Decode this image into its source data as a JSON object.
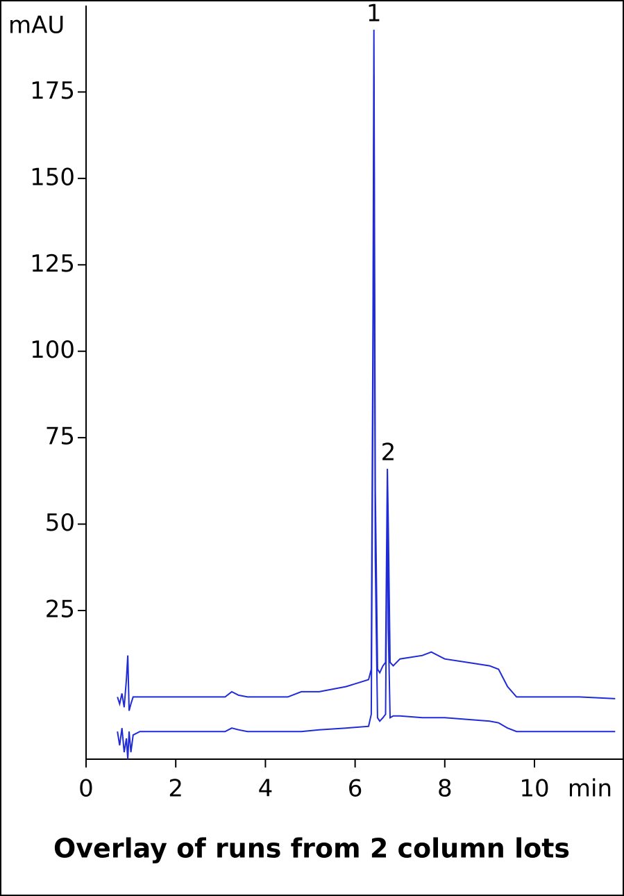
{
  "chart_data": {
    "type": "line",
    "title": "Overlay of runs from 2 column lots",
    "ylabel": "mAU",
    "xlabel": "min",
    "x": [
      0.7,
      0.75,
      0.8,
      0.85,
      0.9,
      0.93,
      0.96,
      1.0,
      1.05,
      1.2,
      2,
      3.1,
      3.25,
      3.4,
      3.6,
      4.5,
      4.8,
      5.2,
      5.8,
      6.3,
      6.36,
      6.4,
      6.42,
      6.45,
      6.5,
      6.55,
      6.62,
      6.68,
      6.72,
      6.74,
      6.78,
      6.85,
      7,
      7.5,
      7.7,
      8,
      8.5,
      9,
      9.2,
      9.4,
      9.6,
      10,
      11,
      11.8
    ],
    "series": [
      {
        "color": "#1f2bd6",
        "values": [
          0,
          -2,
          1,
          -3,
          5,
          12,
          -4,
          -2,
          0,
          0,
          0,
          0,
          1.5,
          0.5,
          0,
          0,
          1.5,
          1.5,
          3,
          5,
          8,
          110,
          193,
          60,
          8,
          7,
          9,
          10,
          66,
          50,
          10,
          9,
          11,
          12,
          13,
          11,
          10,
          9,
          8,
          3,
          0,
          0,
          0,
          -0.5
        ]
      },
      {
        "color": "#1f2bd6",
        "values": [
          -10,
          -14,
          -9,
          -16,
          -12,
          -18,
          -10,
          -16,
          -11,
          -10,
          -10,
          -10,
          -9,
          -9.5,
          -10,
          -10,
          -10,
          -9.5,
          -9,
          -8.5,
          -5,
          90,
          180,
          40,
          -6,
          -7,
          -6,
          -5,
          60,
          20,
          -6,
          -5.5,
          -5.5,
          -6,
          -6,
          -6,
          -6.5,
          -7,
          -7.5,
          -9,
          -10,
          -10,
          -10,
          -10
        ]
      }
    ],
    "annotations": [
      {
        "text": "1",
        "x": 6.42,
        "y": 193
      },
      {
        "text": "2",
        "x": 6.74,
        "y": 66
      }
    ],
    "xlim": [
      0,
      11.8
    ],
    "ylim": [
      -18,
      200
    ],
    "xticks": [
      0,
      2,
      4,
      6,
      8,
      10
    ],
    "yticks": [
      25,
      50,
      75,
      100,
      125,
      150,
      175
    ]
  }
}
